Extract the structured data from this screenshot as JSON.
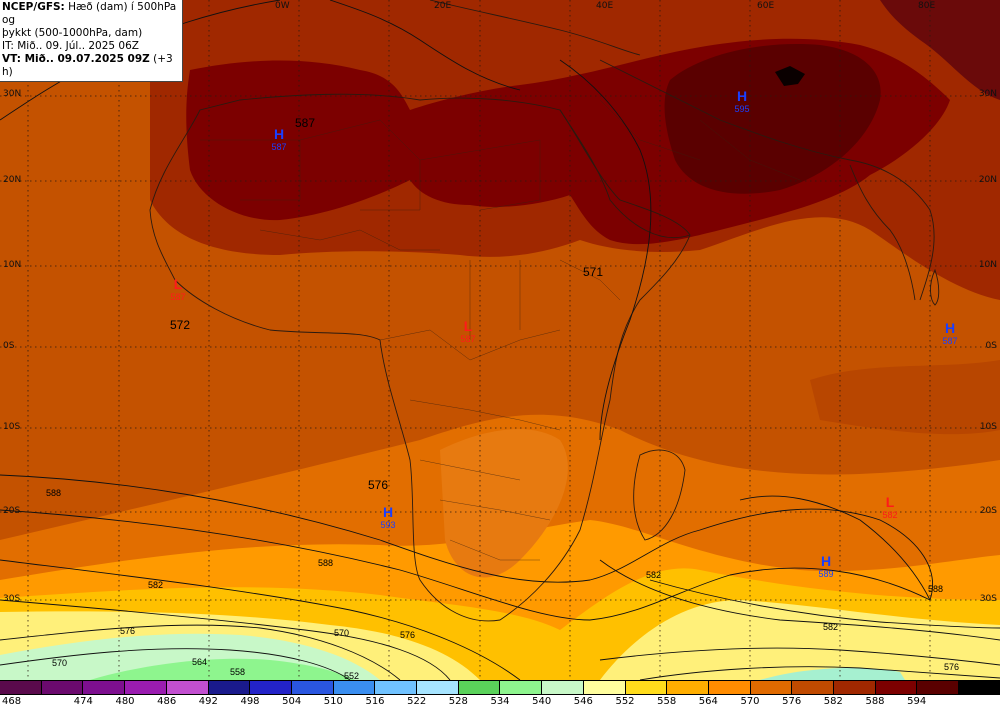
{
  "header": {
    "line1": "NCEP/GFS: Hæð (dam) í 500hPa og",
    "line2": "þykkt (500-1000hPa, dam)",
    "line3": "IT: Mið.. 09. Júl.. 2025 06Z",
    "line4": "VT: Mið.. 09.07.2025 09Z",
    "line4_suffix": " (+3 h)"
  },
  "lat_labels": [
    "30N",
    "20N",
    "10N",
    "0S",
    "10S",
    "20S",
    "30S"
  ],
  "lat_labels_right": [
    "30N",
    "20N",
    "10N",
    "0S",
    "10S",
    "20S",
    "30S"
  ],
  "lon_labels": [
    "0W",
    "20E",
    "40E",
    "60E",
    "80E"
  ],
  "pressure_centers": [
    {
      "letter": "H",
      "value": "587"
    },
    {
      "letter": "H",
      "value": "595"
    },
    {
      "letter": "L",
      "value": "587"
    },
    {
      "letter": "L",
      "value": "587"
    },
    {
      "letter": "H",
      "value": "587"
    },
    {
      "letter": "H",
      "value": "593"
    },
    {
      "letter": "L",
      "value": "582"
    },
    {
      "letter": "H",
      "value": "589"
    }
  ],
  "contour_labels": [
    "587",
    "571",
    "572",
    "576",
    "588",
    "582",
    "576",
    "570",
    "564",
    "558",
    "552",
    "582",
    "588",
    "576",
    "570",
    "576",
    "582",
    "588"
  ],
  "legend": {
    "ticks": [
      "468",
      "474",
      "480",
      "486",
      "492",
      "498",
      "504",
      "510",
      "516",
      "522",
      "528",
      "534",
      "540",
      "546",
      "552",
      "558",
      "564",
      "570",
      "576",
      "582",
      "588",
      "594"
    ],
    "colors": [
      "#5a0a4c",
      "#6b0a6e",
      "#7d0f8f",
      "#9a1cb0",
      "#c24fd0",
      "#1a1a8c",
      "#2323c8",
      "#2a56e0",
      "#3a8ef0",
      "#70c2ff",
      "#a6e4ff",
      "#5ad25a",
      "#8ef58e",
      "#c8f8c8",
      "#fffe9e",
      "#ffdc1c",
      "#ffae00",
      "#ff8c00",
      "#e06a00",
      "#c04a00",
      "#a02800",
      "#7c0000",
      "#5a0000",
      "#000000"
    ]
  }
}
